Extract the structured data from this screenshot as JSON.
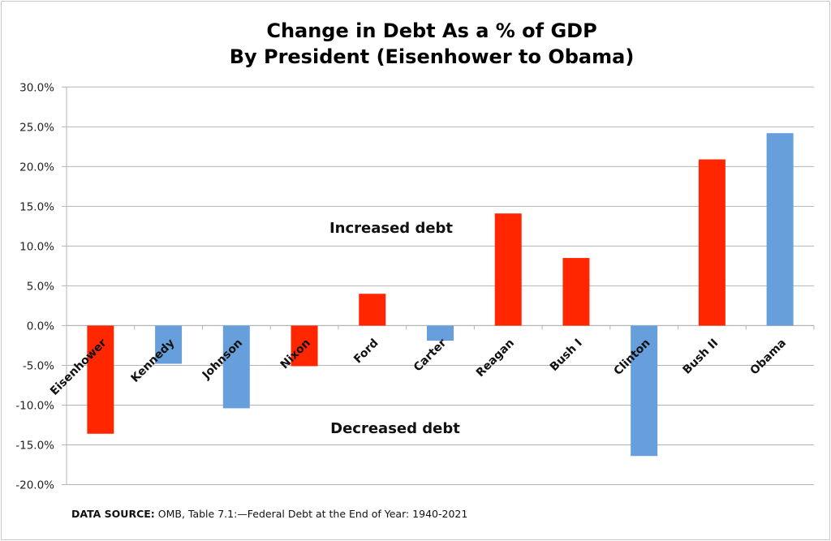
{
  "chart_data": {
    "type": "bar",
    "title": "Change in Debt As a % of GDP",
    "subtitle": "By President (Eisenhower to Obama)",
    "categories": [
      "Eisenhower",
      "Kennedy",
      "Johnson",
      "Nixon",
      "Ford",
      "Carter",
      "Reagan",
      "Bush I",
      "Clinton",
      "Bush II",
      "Obama"
    ],
    "values": [
      -13.6,
      -4.8,
      -10.4,
      -5.1,
      4.0,
      -1.9,
      14.1,
      8.5,
      -16.4,
      20.9,
      24.2
    ],
    "bar_colors": [
      "#ff2600",
      "#669fdc",
      "#669fdc",
      "#ff2600",
      "#ff2600",
      "#669fdc",
      "#ff2600",
      "#ff2600",
      "#669fdc",
      "#ff2600",
      "#669fdc"
    ],
    "ylim": [
      -20,
      30
    ],
    "yticks": [
      30,
      25,
      20,
      15,
      10,
      5,
      0,
      -5,
      -10,
      -15,
      -20
    ],
    "ytick_labels": [
      "30.0%",
      "25.0%",
      "20.0%",
      "15.0%",
      "10.0%",
      "5.0%",
      "0.0%",
      "-5.0%",
      "-10.0%",
      "-15.0%",
      "-20.0%"
    ],
    "xlabel": "",
    "ylabel": "",
    "grid": true,
    "legend": "none",
    "annotations": {
      "increased": "Increased debt",
      "decreased": "Decreased debt"
    }
  },
  "source": {
    "label": "DATA SOURCE:",
    "text": " OMB, Table 7.1:—Federal Debt at the End of Year: 1940-2021"
  }
}
